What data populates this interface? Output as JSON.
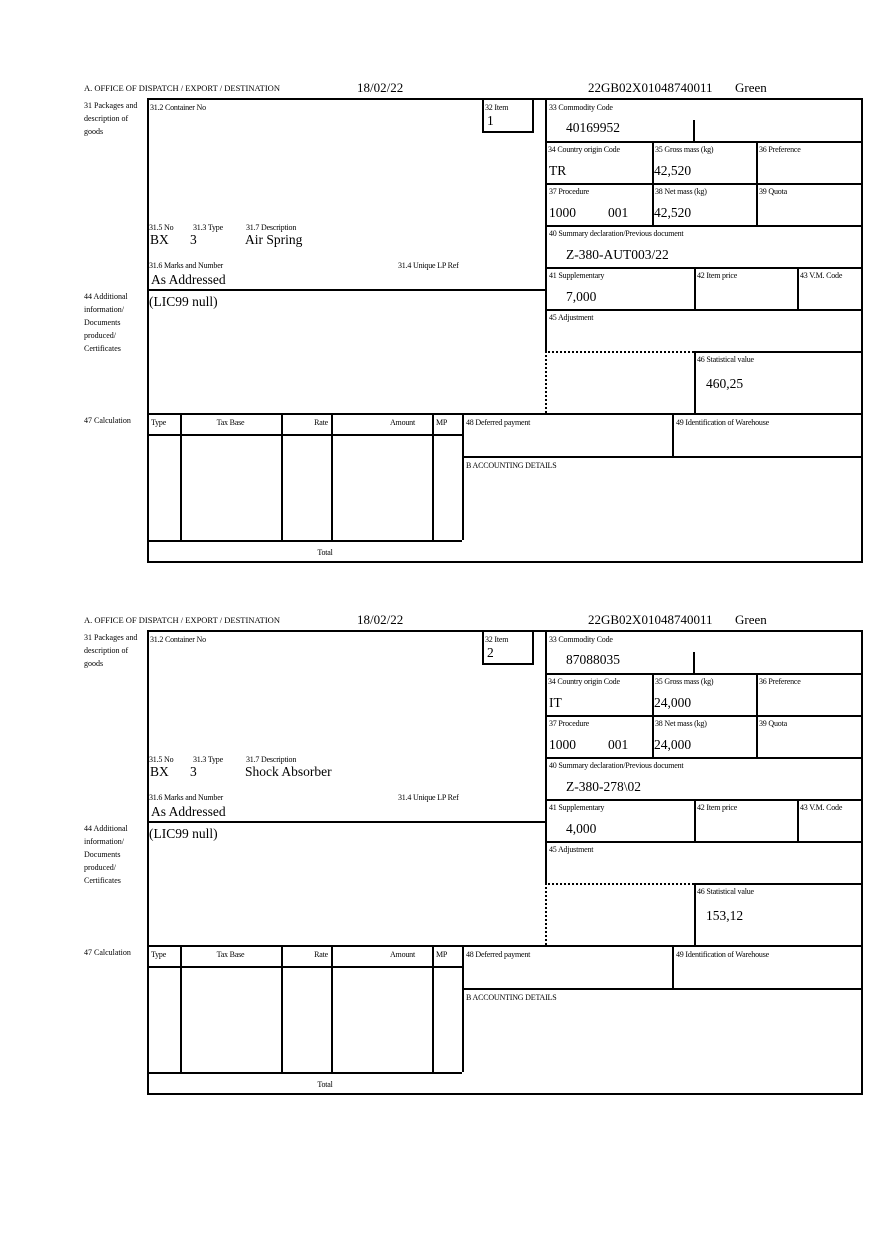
{
  "labels": {
    "office": "A.  OFFICE OF DISPATCH / EXPORT / DESTINATION",
    "packages": "31 Packages and description of goods",
    "container_no": "31.2 Container No",
    "item": "32 Item",
    "no": "31.5 No",
    "type": "31.3 Type",
    "description": "31.7 Description",
    "marks": "31.6 Marks and Number",
    "unique_lp_ref": "31.4 Unique LP Ref",
    "additional_info": "44 Additional information/ Documents produced/ Certificates",
    "commodity_code": "33 Commodity Code",
    "country_origin": "34 Country origin Code",
    "gross_mass": "35 Gross mass (kg)",
    "preference": "36 Preference",
    "procedure": "37 Procedure",
    "net_mass": "38 Net mass (kg)",
    "quota": "39 Quota",
    "summary_declaration": "40 Summary declaration/Previous document",
    "supplementary": "41 Supplementary",
    "item_price": "42 Item price",
    "vm_code": "43 V.M. Code",
    "adjustment": "45 Adjustment",
    "statistical_value": "46 Statistical value",
    "calculation": "47 Calculation",
    "calc_type": "Type",
    "calc_tax_base": "Tax Base",
    "calc_rate": "Rate",
    "calc_amount": "Amount",
    "calc_mp": "MP",
    "deferred_payment": "48 Deferred payment",
    "warehouse": "49 Identification of Warehouse",
    "accounting": "B ACCOUNTING DETAILS",
    "total": "Total"
  },
  "declarations": [
    {
      "date": "18/02/22",
      "reference": "22GB02X01048740011",
      "route": "Green",
      "item": "1",
      "package_kind": "BX",
      "package_count": "3",
      "description": "Air Spring",
      "marks": "As Addressed",
      "additional_info": "(LIC99 null)",
      "commodity_code": "40169952",
      "country_origin": "TR",
      "gross_mass": "42,520",
      "procedure": "1000",
      "procedure_additional": "001",
      "net_mass": "42,520",
      "previous_document": "Z-380-AUT003/22",
      "supplementary": "7,000",
      "statistical_value": "460,25"
    },
    {
      "date": "18/02/22",
      "reference": "22GB02X01048740011",
      "route": "Green",
      "item": "2",
      "package_kind": "BX",
      "package_count": "3",
      "description": "Shock Absorber",
      "marks": "As Addressed",
      "additional_info": "(LIC99 null)",
      "commodity_code": "87088035",
      "country_origin": "IT",
      "gross_mass": "24,000",
      "procedure": "1000",
      "procedure_additional": "001",
      "net_mass": "24,000",
      "previous_document": "Z-380-278\\02",
      "supplementary": "4,000",
      "statistical_value": "153,12"
    }
  ]
}
